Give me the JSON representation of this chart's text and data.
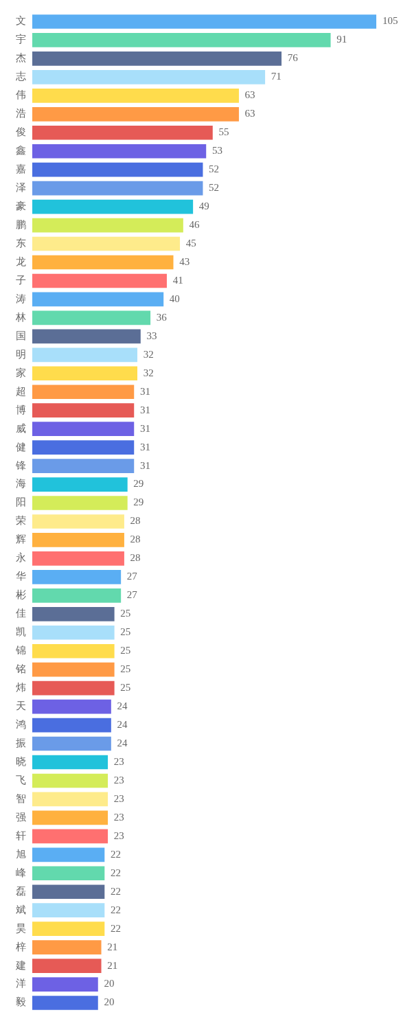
{
  "chart_data": {
    "type": "bar",
    "orientation": "horizontal",
    "data_labels": true,
    "categories": [
      "文",
      "宇",
      "杰",
      "志",
      "伟",
      "浩",
      "俊",
      "鑫",
      "嘉",
      "泽",
      "豪",
      "鹏",
      "东",
      "龙",
      "子",
      "涛",
      "林",
      "国",
      "明",
      "家",
      "超",
      "博",
      "威",
      "健",
      "锋",
      "海",
      "阳",
      "荣",
      "辉",
      "永",
      "华",
      "彬",
      "佳",
      "凯",
      "锦",
      "铭",
      "炜",
      "天",
      "鸿",
      "振",
      "晓",
      "飞",
      "智",
      "强",
      "轩",
      "旭",
      "峰",
      "磊",
      "斌",
      "昊",
      "梓",
      "建",
      "洋",
      "毅"
    ],
    "values": [
      105,
      91,
      76,
      71,
      63,
      63,
      55,
      53,
      52,
      52,
      49,
      46,
      45,
      43,
      41,
      40,
      36,
      33,
      32,
      32,
      31,
      31,
      31,
      31,
      31,
      29,
      29,
      28,
      28,
      28,
      27,
      27,
      25,
      25,
      25,
      25,
      25,
      24,
      24,
      24,
      23,
      23,
      23,
      23,
      23,
      22,
      22,
      22,
      22,
      22,
      21,
      21,
      20,
      20
    ],
    "colors": [
      "#5aaef3",
      "#62d9ad",
      "#5b6e96",
      "#a8dffa",
      "#ffdc4c",
      "#ff9a45",
      "#e65a56",
      "#6d61e4",
      "#4a6ee0",
      "#6a9be8",
      "#21c2db",
      "#d4ec59",
      "#feeb8b",
      "#ffb13f",
      "#ff7070",
      "#5aaef3",
      "#62d9ad",
      "#5b6e96",
      "#a8dffa",
      "#ffdc4c",
      "#ff9a45",
      "#e65a56",
      "#6d61e4",
      "#4a6ee0",
      "#6a9be8",
      "#21c2db",
      "#d4ec59",
      "#feeb8b",
      "#ffb13f",
      "#ff7070",
      "#5aaef3",
      "#62d9ad",
      "#5b6e96",
      "#a8dffa",
      "#ffdc4c",
      "#ff9a45",
      "#e65a56",
      "#6d61e4",
      "#4a6ee0",
      "#6a9be8",
      "#21c2db",
      "#d4ec59",
      "#feeb8b",
      "#ffb13f",
      "#ff7070",
      "#5aaef3",
      "#62d9ad",
      "#5b6e96",
      "#a8dffa",
      "#ffdc4c",
      "#ff9a45",
      "#e65a56",
      "#6d61e4",
      "#4a6ee0"
    ]
  }
}
